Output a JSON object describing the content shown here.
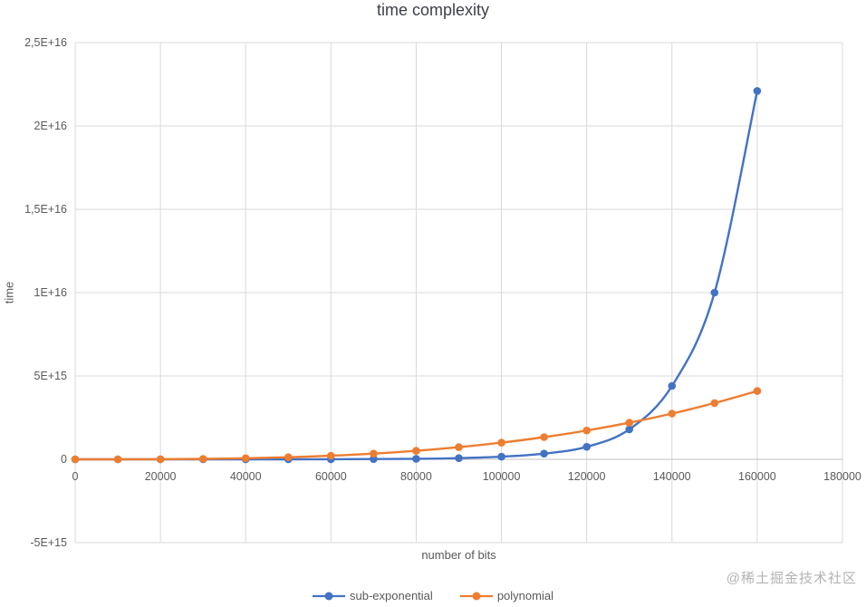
{
  "watermark": "@稀土掘金技术社区",
  "chart_data": {
    "type": "line",
    "title": "time complexity",
    "xlabel": "number of bits",
    "ylabel": "time",
    "grid": true,
    "legend_position": "bottom",
    "colors": {
      "grid": "#D9D9D9",
      "zero_axis": "#BFBFBF",
      "tick_text": "#595959"
    },
    "xlim": [
      0,
      180000
    ],
    "ylim": [
      -5000000000000000.0,
      2.5e+16
    ],
    "x_ticks": {
      "values": [
        0,
        20000,
        40000,
        60000,
        80000,
        100000,
        120000,
        140000,
        160000,
        180000
      ],
      "labels": [
        "0",
        "20000",
        "40000",
        "60000",
        "80000",
        "100000",
        "120000",
        "140000",
        "160000",
        "180000"
      ]
    },
    "y_ticks": {
      "values": [
        -5000000000000000.0,
        0,
        5000000000000000.0,
        1e+16,
        1.5e+16,
        2e+16,
        2.5e+16
      ],
      "labels": [
        "-5E+15",
        "0",
        "5E+15",
        "1E+16",
        "1,5E+16",
        "2E+16",
        "2,5E+16"
      ]
    },
    "x": [
      0,
      10000,
      20000,
      30000,
      40000,
      50000,
      60000,
      70000,
      80000,
      90000,
      100000,
      110000,
      120000,
      130000,
      140000,
      150000,
      160000
    ],
    "series": [
      {
        "name": "sub-exponential",
        "color": "#4472C4",
        "values": [
          10000000000.0,
          40000000000.0,
          150000000000.0,
          400000000000.0,
          1000000000000.0,
          2500000000000.0,
          6000000000000.0,
          14000000000000.0,
          30000000000000.0,
          70000000000000.0,
          160000000000000.0,
          340000000000000.0,
          750000000000000.0,
          1800000000000000.0,
          4400000000000000.0,
          1e+16,
          2.21e+16
        ]
      },
      {
        "name": "polynomial",
        "color": "#ED7D31",
        "values": [
          0,
          1000000000000.0,
          8000000000000.0,
          27000000000000.0,
          64000000000000.0,
          125000000000000.0,
          216000000000000.0,
          343000000000000.0,
          512000000000000.0,
          729000000000000.0,
          1000000000000000.0,
          1331000000000000.0,
          1728000000000000.0,
          2197000000000000.0,
          2744000000000000.0,
          3375000000000000.0,
          4096000000000000.0
        ]
      }
    ]
  }
}
